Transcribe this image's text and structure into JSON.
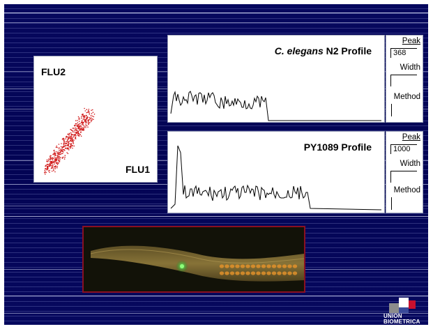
{
  "scatter": {
    "y_label": "FLU2",
    "x_label": "FLU1"
  },
  "profile_n2": {
    "title_italic": "C. elegans",
    "title_rest": " N2 Profile",
    "peak_label": "Peak",
    "peak_value": "368",
    "width_label": "Width",
    "method_label": "Method"
  },
  "profile_py": {
    "title": "PY1089 Profile",
    "peak_label": "Peak",
    "peak_value": "1000",
    "width_label": "Width",
    "method_label": "Method"
  },
  "logo": {
    "line1": "UNION",
    "line2": "BIOMETRICA"
  },
  "colors": {
    "background": "#02034d",
    "scatter_points": "#d01818",
    "image_border": "#8a1022",
    "logo_red": "#c8102e",
    "logo_gray": "#8c8c8c"
  }
}
